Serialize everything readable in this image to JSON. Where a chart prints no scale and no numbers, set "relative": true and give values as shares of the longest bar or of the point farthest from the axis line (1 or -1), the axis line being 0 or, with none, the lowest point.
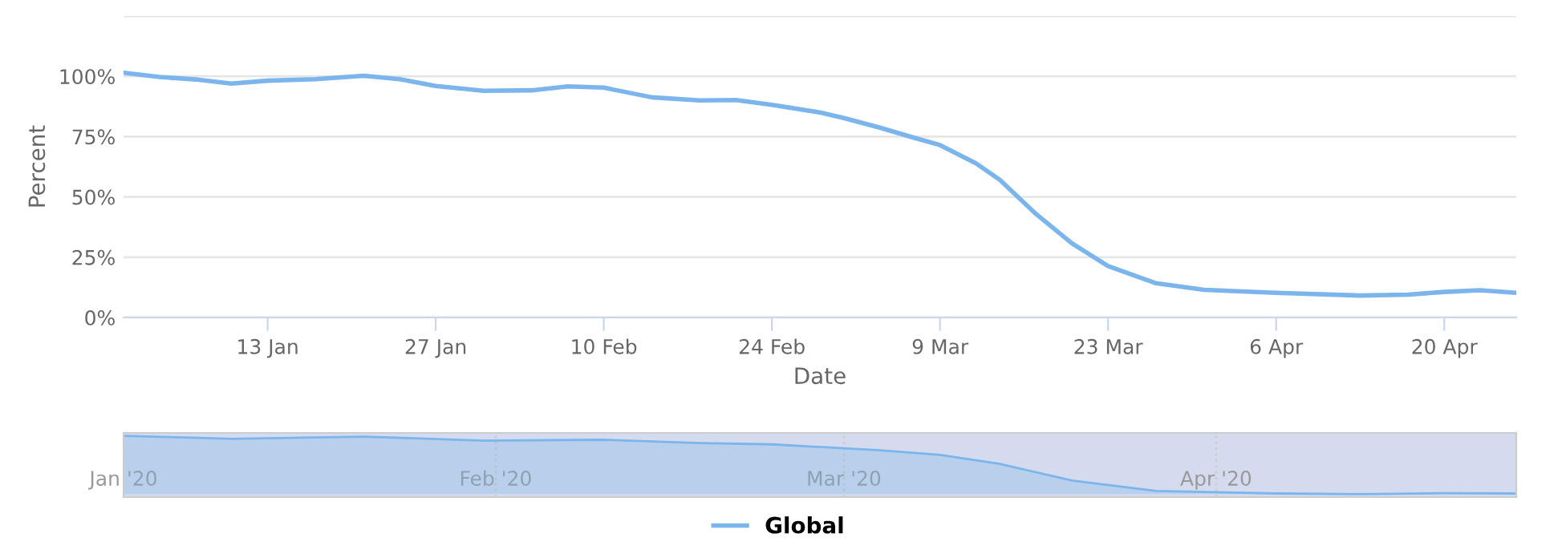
{
  "chart_data": [
    {
      "type": "line",
      "xlabel": "Date",
      "ylabel": "Percent",
      "x": [
        "2020-01-01",
        "2020-01-04",
        "2020-01-07",
        "2020-01-10",
        "2020-01-13",
        "2020-01-17",
        "2020-01-21",
        "2020-01-24",
        "2020-01-27",
        "2020-01-31",
        "2020-02-04",
        "2020-02-07",
        "2020-02-10",
        "2020-02-14",
        "2020-02-18",
        "2020-02-21",
        "2020-02-24",
        "2020-02-28",
        "2020-03-01",
        "2020-03-04",
        "2020-03-07",
        "2020-03-09",
        "2020-03-12",
        "2020-03-14",
        "2020-03-17",
        "2020-03-20",
        "2020-03-23",
        "2020-03-27",
        "2020-03-31",
        "2020-04-06",
        "2020-04-13",
        "2020-04-17",
        "2020-04-20",
        "2020-04-23",
        "2020-04-26"
      ],
      "series": [
        {
          "name": "Global",
          "color": "#7cb5ec",
          "values": [
            101.5,
            99.7,
            98.7,
            97,
            98.2,
            98.8,
            100.2,
            98.8,
            96,
            94,
            94.2,
            95.8,
            95.3,
            91.3,
            90,
            90.2,
            88.2,
            85,
            82.7,
            78.7,
            74.3,
            71.5,
            63.9,
            57,
            42.9,
            30.7,
            21.3,
            14.2,
            11.5,
            10.2,
            9.1,
            9.5,
            10.6,
            11.3,
            10.2
          ]
        }
      ],
      "xlim": [
        "2020-01-01",
        "2020-04-26"
      ],
      "xticks": [
        {
          "value": "2020-01-13",
          "label": "13 Jan"
        },
        {
          "value": "2020-01-27",
          "label": "27 Jan"
        },
        {
          "value": "2020-02-10",
          "label": "10 Feb"
        },
        {
          "value": "2020-02-24",
          "label": "24 Feb"
        },
        {
          "value": "2020-03-09",
          "label": "9 Mar"
        },
        {
          "value": "2020-03-23",
          "label": "23 Mar"
        },
        {
          "value": "2020-04-06",
          "label": "6 Apr"
        },
        {
          "value": "2020-04-20",
          "label": "20 Apr"
        }
      ],
      "ylim": [
        0,
        125
      ],
      "yticks": [
        {
          "value": 0,
          "label": "0%"
        },
        {
          "value": 25,
          "label": "25%"
        },
        {
          "value": 50,
          "label": "50%"
        },
        {
          "value": 75,
          "label": "75%"
        },
        {
          "value": 100,
          "label": "100%"
        },
        {
          "value": 125,
          "label": null
        }
      ],
      "grid": "y",
      "legend": "bottom"
    },
    {
      "type": "area",
      "relative": true,
      "x": [
        "2020-01-01",
        "2020-01-10",
        "2020-01-21",
        "2020-01-31",
        "2020-02-10",
        "2020-02-18",
        "2020-02-24",
        "2020-03-04",
        "2020-03-09",
        "2020-03-14",
        "2020-03-20",
        "2020-03-27",
        "2020-04-06",
        "2020-04-13",
        "2020-04-20",
        "2020-04-26"
      ],
      "series": [
        {
          "color": "#7cb5ec",
          "values": [
            1.0,
            0.95,
            0.986,
            0.919,
            0.933,
            0.875,
            0.854,
            0.753,
            0.675,
            0.518,
            0.234,
            0.055,
            0.012,
            0,
            0.016,
            0.012
          ]
        }
      ],
      "xlim": [
        "2020-01-01",
        "2020-04-26"
      ],
      "xticks": [
        {
          "value": "2020-01-01",
          "label": "Jan '20"
        },
        {
          "value": "2020-02-01",
          "label": "Feb '20"
        },
        {
          "value": "2020-03-01",
          "label": "Mar '20"
        },
        {
          "value": "2020-04-01",
          "label": "Apr '20"
        }
      ],
      "grid": "x"
    }
  ]
}
